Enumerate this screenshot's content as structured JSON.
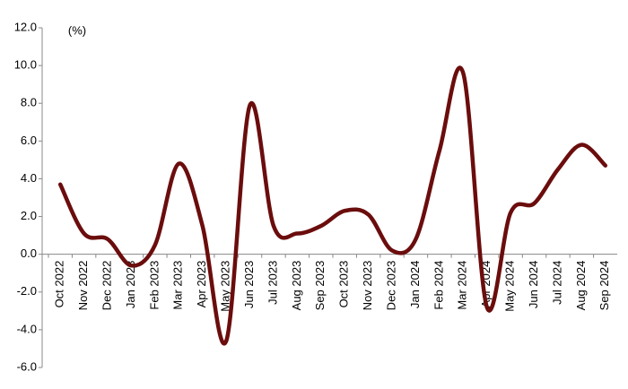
{
  "chart_data": {
    "type": "line",
    "annotation": "(%)",
    "categories": [
      "Oct 2022",
      "Nov 2022",
      "Dec 2022",
      "Jan 2023",
      "Feb 2023",
      "Mar 2023",
      "Apr 2023",
      "May 2023",
      "Jun 2023",
      "Jul 2023",
      "Aug 2023",
      "Sep 2023",
      "Oct 2023",
      "Nov 2023",
      "Dec 2023",
      "Jan 2024",
      "Feb 2024",
      "Mar 2024",
      "Apr 2024",
      "May 2024",
      "Jun 2024",
      "Jul 2024",
      "Aug 2024",
      "Sep 2024"
    ],
    "values": [
      3.7,
      1.1,
      0.8,
      -0.6,
      0.5,
      4.8,
      1.5,
      -4.6,
      7.9,
      1.5,
      1.1,
      1.5,
      2.3,
      2.1,
      0.2,
      0.8,
      5.5,
      9.6,
      -2.8,
      2.2,
      2.7,
      4.5,
      5.8,
      4.7
    ],
    "color": "#6b0d0d",
    "ylim": [
      -6,
      12
    ],
    "yticks": [
      {
        "value": -6,
        "label": "-6.0"
      },
      {
        "value": -4,
        "label": "-4.0"
      },
      {
        "value": -2,
        "label": "-2.0"
      },
      {
        "value": 0,
        "label": "0.0"
      },
      {
        "value": 2,
        "label": "2.0"
      },
      {
        "value": 4,
        "label": "4.0"
      },
      {
        "value": 6,
        "label": "6.0"
      },
      {
        "value": 8,
        "label": "8.0"
      },
      {
        "value": 10,
        "label": "10.0"
      },
      {
        "value": 12,
        "label": "12.0"
      }
    ]
  }
}
